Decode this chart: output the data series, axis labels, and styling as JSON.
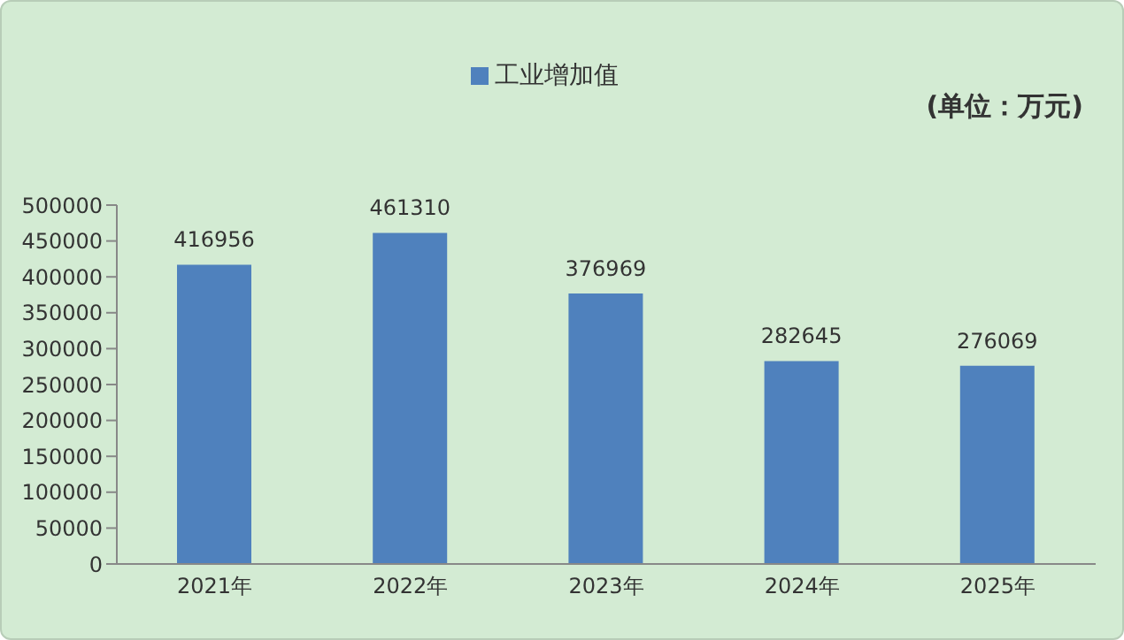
{
  "chart_data": {
    "type": "bar",
    "categories": [
      "2021年",
      "2022年",
      "2023年",
      "2024年",
      "2025年"
    ],
    "series": [
      {
        "name": "工业增加值",
        "color": "#4f81bd",
        "values": [
          416956,
          461310,
          376969,
          282645,
          276069
        ]
      }
    ],
    "ylim": [
      0,
      500000
    ],
    "yticks": [
      0,
      50000,
      100000,
      150000,
      200000,
      250000,
      300000,
      350000,
      400000,
      450000,
      500000
    ],
    "data_labels": true,
    "legend": "top",
    "annotations": [
      "(单位：万元)"
    ]
  }
}
